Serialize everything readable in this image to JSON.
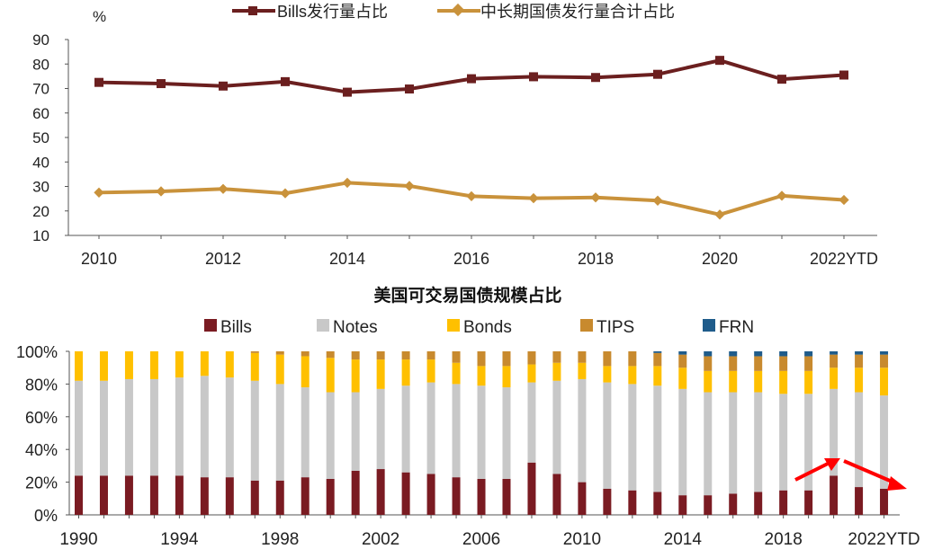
{
  "chart_data": [
    {
      "type": "line",
      "title": "",
      "unit_label": "%",
      "x": [
        "2010",
        "2011",
        "2012",
        "2013",
        "2014",
        "2015",
        "2016",
        "2017",
        "2018",
        "2019",
        "2020",
        "2021",
        "2022YTD"
      ],
      "x_tick_labels": [
        "2010",
        "2012",
        "2014",
        "2016",
        "2018",
        "2020",
        "2022YTD"
      ],
      "ylim": [
        10,
        90
      ],
      "y_ticks": [
        10,
        20,
        30,
        40,
        50,
        60,
        70,
        80,
        90
      ],
      "grid": false,
      "legend_position": "top",
      "series": [
        {
          "name": "Bills发行量占比",
          "color": "#6b1f1f",
          "marker": "square",
          "values": [
            72.5,
            72.0,
            71.0,
            72.8,
            68.5,
            69.8,
            74.0,
            74.8,
            74.5,
            75.8,
            81.5,
            73.8,
            75.5
          ]
        },
        {
          "name": "中长期国债发行量合计占比",
          "color": "#c9923b",
          "marker": "diamond",
          "values": [
            27.5,
            28.0,
            29.0,
            27.2,
            31.5,
            30.2,
            26.0,
            25.2,
            25.5,
            24.2,
            18.5,
            26.2,
            24.5
          ]
        }
      ]
    },
    {
      "type": "bar",
      "stacked": true,
      "title": "美国可交易国债规模占比",
      "categories": [
        "1990",
        "1991",
        "1992",
        "1993",
        "1994",
        "1995",
        "1996",
        "1997",
        "1998",
        "1999",
        "2000",
        "2001",
        "2002",
        "2003",
        "2004",
        "2005",
        "2006",
        "2007",
        "2008",
        "2009",
        "2010",
        "2011",
        "2012",
        "2013",
        "2014",
        "2015",
        "2016",
        "2017",
        "2018",
        "2019",
        "2020",
        "2021",
        "2022YTD"
      ],
      "x_tick_labels": [
        "1990",
        "1994",
        "1998",
        "2002",
        "2006",
        "2010",
        "2014",
        "2018",
        "2022YTD"
      ],
      "ylim": [
        0,
        100
      ],
      "y_tick_labels": [
        "0%",
        "20%",
        "40%",
        "60%",
        "80%",
        "100%"
      ],
      "grid": false,
      "legend_position": "top",
      "series": [
        {
          "name": "Bills",
          "color": "#7a1b22",
          "values": [
            24,
            24,
            24,
            24,
            24,
            23,
            23,
            21,
            21,
            23,
            22,
            27,
            28,
            26,
            25,
            23,
            22,
            22,
            32,
            25,
            20,
            16,
            15,
            14,
            12,
            12,
            13,
            14,
            15,
            15,
            24,
            17,
            16
          ]
        },
        {
          "name": "Notes",
          "color": "#c8c8c8",
          "values": [
            58,
            58,
            59,
            59,
            60,
            62,
            61,
            61,
            59,
            55,
            53,
            48,
            49,
            53,
            56,
            57,
            57,
            56,
            49,
            57,
            63,
            65,
            65,
            65,
            65,
            63,
            62,
            61,
            59,
            59,
            53,
            58,
            57
          ]
        },
        {
          "name": "Bonds",
          "color": "#ffc000",
          "values": [
            18,
            18,
            17,
            17,
            16,
            15,
            16,
            17,
            18,
            19,
            21,
            20,
            18,
            16,
            14,
            13,
            12,
            13,
            11,
            11,
            10,
            10,
            11,
            12,
            13,
            13,
            13,
            13,
            14,
            14,
            13,
            15,
            17
          ]
        },
        {
          "name": "TIPS",
          "color": "#c88a2e",
          "values": [
            0,
            0,
            0,
            0,
            0,
            0,
            0,
            1,
            2,
            3,
            4,
            5,
            5,
            5,
            5,
            7,
            9,
            9,
            8,
            7,
            7,
            9,
            9,
            8,
            8,
            9,
            9,
            9,
            9,
            9,
            8,
            8,
            8
          ]
        },
        {
          "name": "FRN",
          "color": "#1f5c8b",
          "values": [
            0,
            0,
            0,
            0,
            0,
            0,
            0,
            0,
            0,
            0,
            0,
            0,
            0,
            0,
            0,
            0,
            0,
            0,
            0,
            0,
            0,
            0,
            0,
            1,
            2,
            3,
            3,
            3,
            3,
            3,
            2,
            2,
            2
          ]
        }
      ],
      "annotation": "red arrows: rise toward 2020, decline into 2022YTD"
    }
  ],
  "colors": {
    "axis": "#555555",
    "text": "#222222",
    "annotation_arrow": "#ff0000"
  }
}
